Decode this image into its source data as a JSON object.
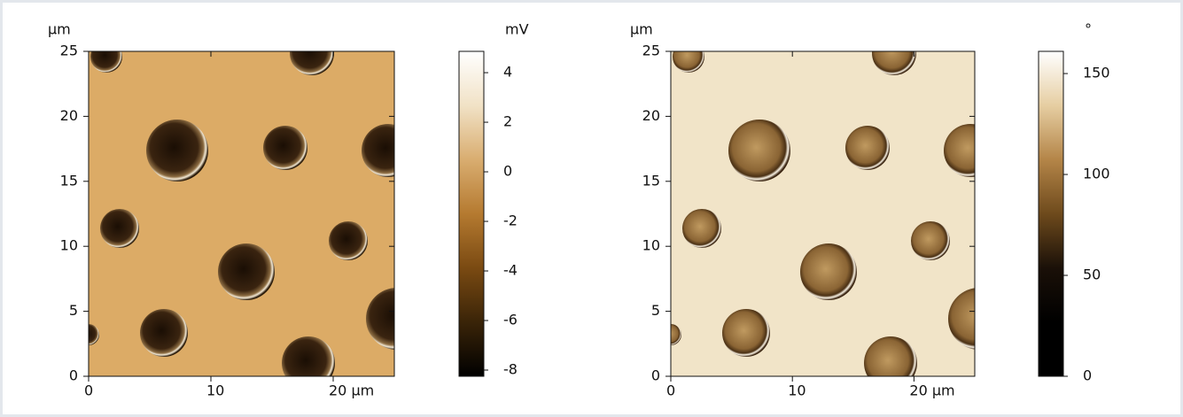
{
  "chart_data": [
    {
      "type": "image",
      "y_unit": "µm",
      "color": "#dcab66",
      "xlim": [
        0,
        25
      ],
      "xticks": [
        0,
        10,
        {
          "value": 20,
          "label": "20 µm"
        }
      ],
      "ylim": [
        0,
        25
      ],
      "yticks": [
        0,
        5,
        10,
        15,
        20,
        25
      ],
      "colorbar": {
        "unit": "mV",
        "lim": [
          -8.25,
          4.86
        ],
        "ticks": [
          -8,
          -6,
          -4,
          -2,
          0,
          2,
          4
        ],
        "colormap": [
          "#000000",
          "#3a2408",
          "#7a4a12",
          "#b57a30",
          "#d9ad70",
          "#f1e2c6",
          "#ffffff"
        ]
      }
    },
    {
      "type": "image",
      "y_unit": "µm",
      "color": "#f1e4c8",
      "xlim": [
        0,
        25
      ],
      "xticks": [
        0,
        10,
        {
          "value": 20,
          "label": "20 µm"
        }
      ],
      "ylim": [
        0,
        25
      ],
      "yticks": [
        0,
        5,
        10,
        15,
        20,
        25
      ],
      "colorbar": {
        "unit": "°",
        "lim": [
          0,
          161
        ],
        "ticks": [
          0,
          50,
          100,
          150
        ],
        "colormap": [
          "#000000",
          "#000000",
          "#1a1008",
          "#6e4a1c",
          "#b48548",
          "#e6cea2",
          "#ffffff"
        ]
      }
    }
  ]
}
